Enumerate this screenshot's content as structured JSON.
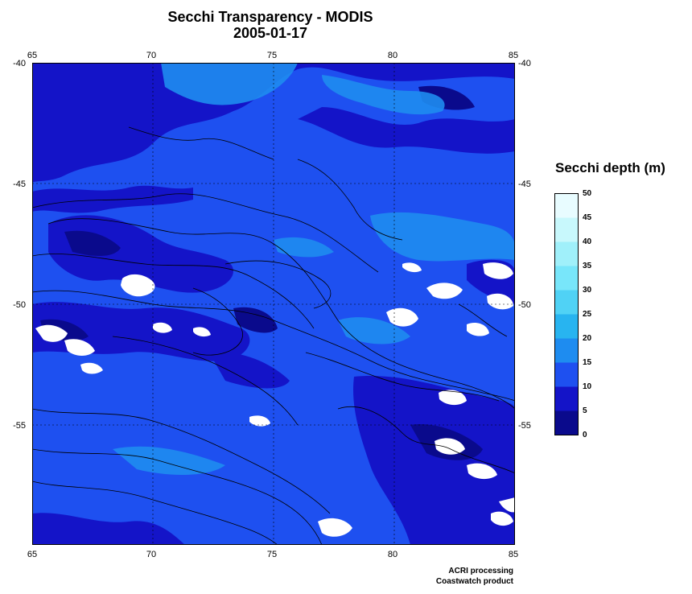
{
  "header": {
    "title": "Secchi Transparency - MODIS",
    "date": "2005-01-17"
  },
  "map": {
    "longitude_ticks": [
      "65",
      "70",
      "75",
      "80",
      "85"
    ],
    "latitude_ticks": [
      "-40",
      "-45",
      "-50",
      "-55"
    ],
    "lon_range": [
      65,
      85
    ],
    "lat_range": [
      -60,
      -40
    ],
    "gridlines": "dotted",
    "land_or_cloud_color": "#ffffff",
    "contour_color": "#000000"
  },
  "legend": {
    "title": "Secchi depth (m)",
    "ticks": [
      "50",
      "45",
      "40",
      "35",
      "30",
      "25",
      "20",
      "15",
      "10",
      "5",
      "0"
    ],
    "bands": [
      {
        "range": "0-5",
        "color": "#0a0a8c"
      },
      {
        "range": "5-10",
        "color": "#1414c8"
      },
      {
        "range": "10-15",
        "color": "#1e50f0"
      },
      {
        "range": "15-20",
        "color": "#1e8cf0"
      },
      {
        "range": "20-25",
        "color": "#28b4f0"
      },
      {
        "range": "25-30",
        "color": "#50d2f5"
      },
      {
        "range": "30-35",
        "color": "#78e6fa"
      },
      {
        "range": "35-40",
        "color": "#a0f0fa"
      },
      {
        "range": "40-45",
        "color": "#c8f8fc"
      },
      {
        "range": "45-50",
        "color": "#e8fcff"
      }
    ]
  },
  "credits": {
    "line1": "ACRI processing",
    "line2": "Coastwatch product"
  }
}
